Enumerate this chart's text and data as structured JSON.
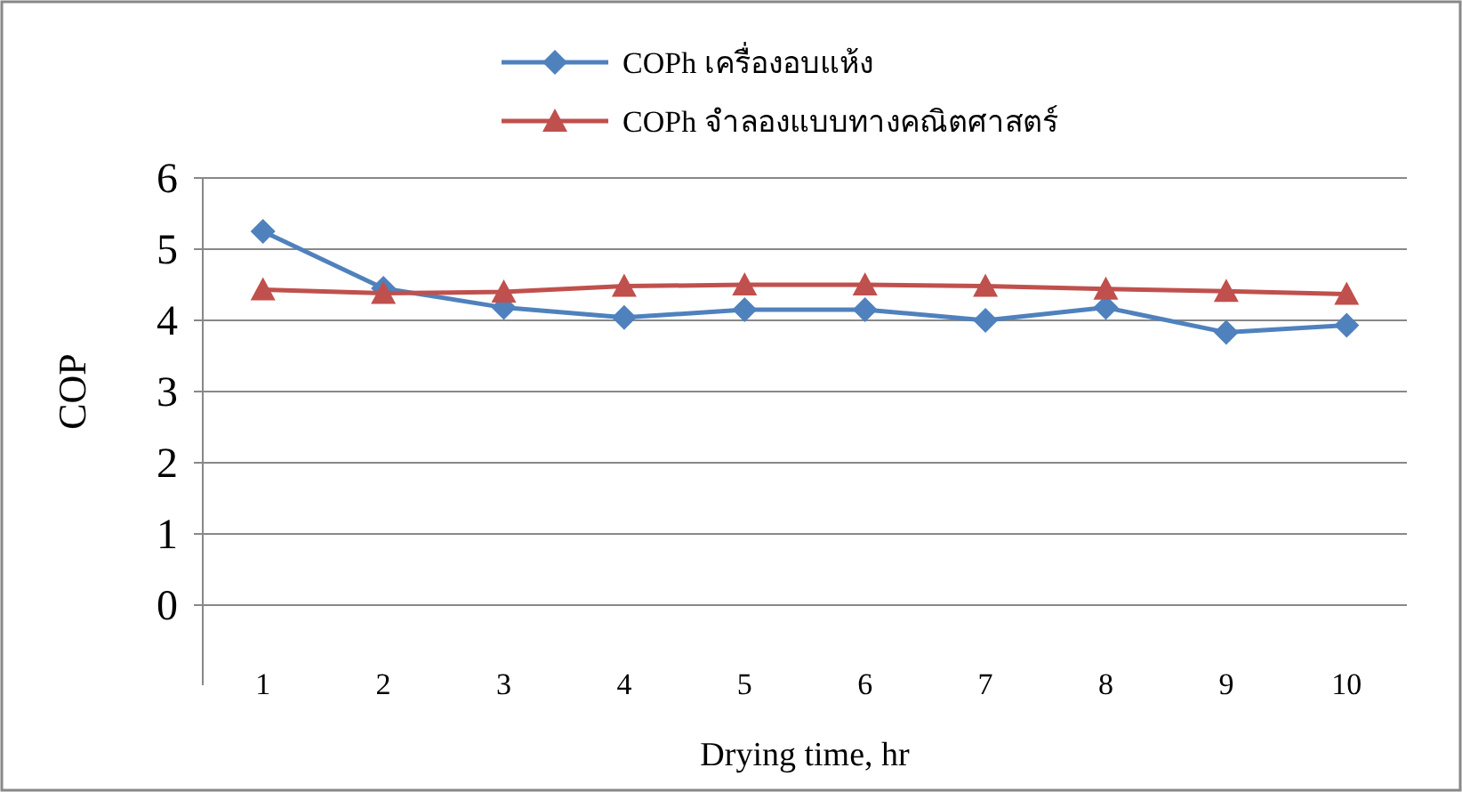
{
  "chart_data": {
    "type": "line",
    "xlabel": "Drying time, hr",
    "ylabel": "COP",
    "categories": [
      "1",
      "2",
      "3",
      "4",
      "5",
      "6",
      "7",
      "8",
      "9",
      "10"
    ],
    "series": [
      {
        "name": "COPh เครื่องอบแห้ง",
        "color": "#4f81bd",
        "marker": "diamond",
        "values": [
          5.25,
          4.45,
          4.18,
          4.04,
          4.15,
          4.15,
          4.0,
          4.18,
          3.83,
          3.93
        ]
      },
      {
        "name": "COPh จำลองแบบทางคณิตศาสตร์",
        "color": "#c0504d",
        "marker": "triangle",
        "values": [
          4.43,
          4.38,
          4.4,
          4.48,
          4.5,
          4.5,
          4.48,
          4.44,
          4.41,
          4.37
        ]
      }
    ],
    "ylim": [
      0,
      6
    ],
    "yticks": [
      0,
      1,
      2,
      3,
      4,
      5,
      6
    ],
    "grid": "y",
    "legend": "top",
    "line_style": "solid"
  }
}
